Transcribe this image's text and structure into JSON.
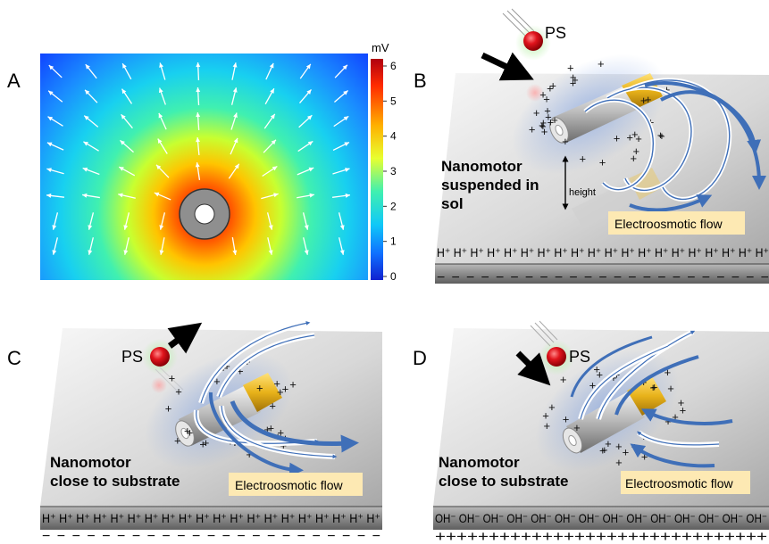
{
  "panels": {
    "A": {
      "letter": "A",
      "colorbar": {
        "unit": "mV",
        "ticks": [
          "6",
          "5",
          "4",
          "3",
          "2",
          "1",
          "0"
        ],
        "gradient_colors": [
          "#e8000b",
          "#ff6a00",
          "#ffd000",
          "#a8ff3c",
          "#20e6c8",
          "#1aa0ff",
          "#0a2cff"
        ]
      }
    },
    "B": {
      "letter": "B",
      "ps_label": "PS",
      "caption_lines": [
        "Nanomotor",
        "suspended in",
        "sol"
      ],
      "height_label": "height",
      "flow_label": "Electroosmotic flow",
      "ion_row": "H⁺ H⁺ H⁺ H⁺ H⁺ H⁺ H⁺ H⁺ H⁺ H⁺ H⁺ H⁺ H⁺ H⁺ H⁺ H⁺ H⁺ H⁺ H⁺ H⁺",
      "charge_row": "− − − − − − − − − − − − − − − − − − − − − − −"
    },
    "C": {
      "letter": "C",
      "ps_label": "PS",
      "caption_lines": [
        "Nanomotor",
        "close to substrate"
      ],
      "flow_label": "Electroosmotic flow",
      "ion_row": "H⁺ H⁺ H⁺ H⁺ H⁺ H⁺ H⁺ H⁺ H⁺ H⁺ H⁺ H⁺ H⁺ H⁺ H⁺ H⁺ H⁺ H⁺ H⁺ H⁺",
      "charge_row": "− − − − − − − − − − − − − − − − − − − − − − −"
    },
    "D": {
      "letter": "D",
      "ps_label": "PS",
      "caption_lines": [
        "Nanomotor",
        "close to substrate"
      ],
      "flow_label": "Electroosmotic flow",
      "ion_row": "OH⁻ OH⁻ OH⁻ OH⁻ OH⁻ OH⁻ OH⁻ OH⁻ OH⁻ OH⁻ OH⁻ OH⁻ OH⁻ OH⁻",
      "charge_row": "+++++++++++++++++++++++++++++++"
    }
  },
  "colors": {
    "substrate_light": "#f2f2f2",
    "substrate_dark": "#8c8c8c",
    "ps_red": "#e0141c",
    "flow_blue": "#3f6fb8",
    "gold": "#e8b21a",
    "flow_label_bg": "#fde9b3"
  }
}
